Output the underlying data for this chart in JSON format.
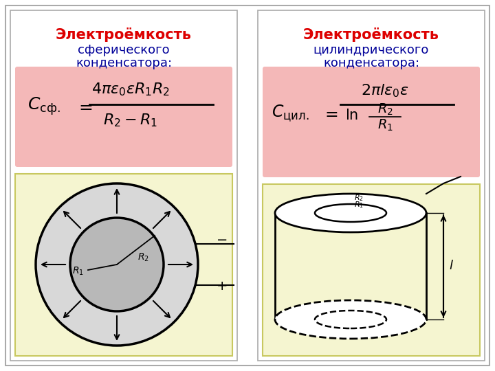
{
  "bg_color": "#ffffff",
  "panel_bg": "#ffffff",
  "formula_bg": "#f4b8b8",
  "diagram_bg": "#f5f5d0",
  "title_color": "#dd0000",
  "text_color": "#000099",
  "black": "#000000",
  "title1": "Электроёмкость",
  "subtitle1a": "сферического",
  "subtitle1b": "конденсатора:",
  "title2": "Электроёмкость",
  "subtitle2a": "цилиндрического",
  "subtitle2b": "конденсатора:"
}
